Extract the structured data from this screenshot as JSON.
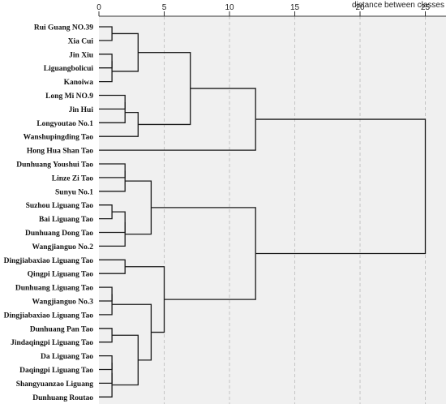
{
  "axis": {
    "title": "distance between classes",
    "min": 0,
    "max": 25,
    "ticks": [
      0,
      5,
      10,
      15,
      20,
      25
    ],
    "grid": "dashed vertical"
  },
  "colors": {
    "plot_bg": "#f0f0f0",
    "grid": "#bbbbbb",
    "line": "#1a1a1a"
  },
  "leaves": [
    "Rui Guang NO.39",
    "Xia Cui",
    "Jin Xiu",
    "Liguangbolicui",
    "Kanoiwa",
    "Long Mi NO.9",
    "Jin Hui",
    "Longyoutao No.1",
    "Wanshupingding Tao",
    "Hong Hua Shan Tao",
    "Dunhuang Youshui Tao",
    "Linze Zi Tao",
    "Sunyu No.1",
    "Suzhou Liguang Tao",
    "Bai Liguang Tao",
    "Dunhuang Dong Tao",
    "Wangjianguo No.2",
    "Dingjiabaxiao Liguang Tao",
    "Qingpi Liguang Tao",
    "Dunhuang Liguang Tao",
    "Wangjianguo No.3",
    "Dingjiabaxiao Liguang Tao",
    "Dunhuang Pan Tao",
    "Jindaqingpi Liguang Tao",
    "Da Liguang Tao",
    "Daqingpi Liguang Tao",
    "Shangyuanzao Liguang",
    "Dunhuang Routao"
  ],
  "merges": [
    [
      "L0",
      "L1",
      1.0
    ],
    [
      "L2",
      "L3",
      1.0
    ],
    [
      "M1",
      "L4",
      1.0
    ],
    [
      "M0",
      "M2",
      3.0
    ],
    [
      "L5",
      "L6",
      2.0
    ],
    [
      "M4",
      "L7",
      2.0
    ],
    [
      "M5",
      "L8",
      3.0
    ],
    [
      "M3",
      "M6",
      7.0
    ],
    [
      "M7",
      "L9",
      12.0
    ],
    [
      "L10",
      "L11",
      2.0
    ],
    [
      "M9",
      "L12",
      2.0
    ],
    [
      "L13",
      "L14",
      1.0
    ],
    [
      "M11",
      "L15",
      2.0
    ],
    [
      "M12",
      "L16",
      2.0
    ],
    [
      "M10",
      "M13",
      4.0
    ],
    [
      "L17",
      "L18",
      2.0
    ],
    [
      "L19",
      "L20",
      1.0
    ],
    [
      "M16",
      "L21",
      1.0
    ],
    [
      "L22",
      "L23",
      1.0
    ],
    [
      "L24",
      "L25",
      1.0
    ],
    [
      "M19",
      "L26",
      1.0
    ],
    [
      "M20",
      "L27",
      1.0
    ],
    [
      "M18",
      "M21",
      3.0
    ],
    [
      "M17",
      "M22",
      4.0
    ],
    [
      "M15",
      "M23",
      5.0
    ],
    [
      "M14",
      "M24",
      12.0
    ],
    [
      "M8",
      "M25",
      25.0
    ]
  ]
}
